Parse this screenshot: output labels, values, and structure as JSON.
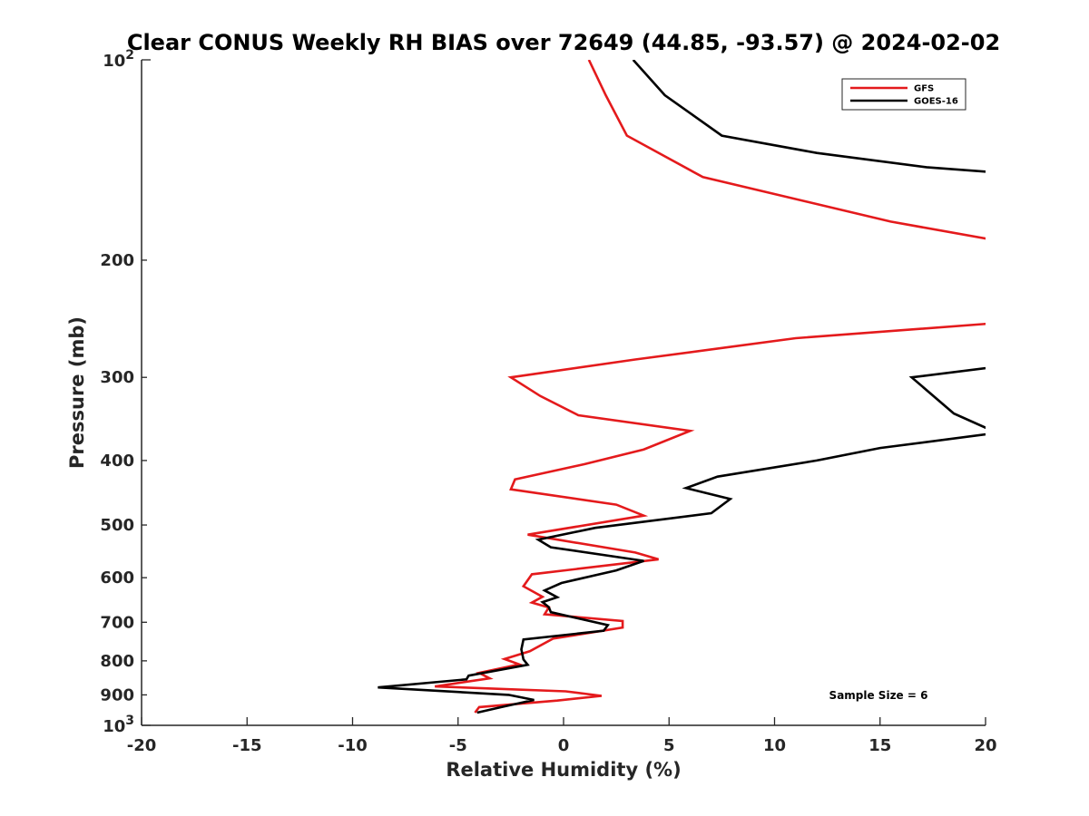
{
  "chart_data": {
    "type": "line",
    "title": "Clear CONUS Weekly RH BIAS over 72649 (44.85, -93.57) @ 2024-02-02",
    "xlabel": "Relative Humidity (%)",
    "ylabel": "Pressure (mb)",
    "xlim": [
      -20,
      20
    ],
    "ylim": [
      100,
      1000
    ],
    "y_scale": "log",
    "y_reversed": true,
    "x_ticks": [
      "-20",
      "-15",
      "-10",
      "-5",
      "0",
      "5",
      "10",
      "15",
      "20"
    ],
    "x_tick_values": [
      -20,
      -15,
      -10,
      -5,
      0,
      5,
      10,
      15,
      20
    ],
    "y_ticks": [
      {
        "value": 200,
        "label": "200"
      },
      {
        "value": 300,
        "label": "300"
      },
      {
        "value": 400,
        "label": "400"
      },
      {
        "value": 500,
        "label": "500"
      },
      {
        "value": 600,
        "label": "600"
      },
      {
        "value": 700,
        "label": "700"
      },
      {
        "value": 800,
        "label": "800"
      },
      {
        "value": 900,
        "label": "900"
      }
    ],
    "y_decade_ticks": [
      {
        "value": 100,
        "base": "10",
        "exp": "2"
      },
      {
        "value": 1000,
        "base": "10",
        "exp": "3"
      }
    ],
    "grid": false,
    "legend_position": "top-right",
    "annotation": "Sample Size = 6",
    "series": [
      {
        "name": "GFS",
        "color": "#e41a1c",
        "points": [
          [
            1.2,
            100
          ],
          [
            2.0,
            113
          ],
          [
            3.0,
            130
          ],
          [
            6.6,
            150
          ],
          [
            15.5,
            175
          ],
          [
            21.0,
            188
          ],
          [
            null,
            220
          ],
          [
            21.0,
            248
          ],
          [
            11.0,
            262
          ],
          [
            3.4,
            282
          ],
          [
            -2.5,
            300
          ],
          [
            -1.1,
            320
          ],
          [
            0.7,
            342
          ],
          [
            6.0,
            361
          ],
          [
            3.8,
            385
          ],
          [
            1.0,
            405
          ],
          [
            -2.3,
            427
          ],
          [
            -2.5,
            442
          ],
          [
            2.5,
            466
          ],
          [
            3.8,
            484
          ],
          [
            -1.7,
            517
          ],
          [
            3.4,
            550
          ],
          [
            4.5,
            563
          ],
          [
            -1.5,
            593
          ],
          [
            -1.9,
            618
          ],
          [
            -1.0,
            641
          ],
          [
            -1.5,
            654
          ],
          [
            -0.7,
            665
          ],
          [
            -0.9,
            681
          ],
          [
            2.8,
            697
          ],
          [
            2.8,
            713
          ],
          [
            -0.5,
            741
          ],
          [
            -1.6,
            774
          ],
          [
            -2.8,
            795
          ],
          [
            -2.1,
            810
          ],
          [
            -4.0,
            834
          ],
          [
            -3.5,
            850
          ],
          [
            -6.1,
            874
          ],
          [
            0.1,
            889
          ],
          [
            1.8,
            903
          ],
          [
            -0.3,
            918
          ],
          [
            -4.0,
            939
          ],
          [
            -4.2,
            957
          ]
        ]
      },
      {
        "name": "GOES-16",
        "color": "#000000",
        "points": [
          [
            3.3,
            100
          ],
          [
            4.8,
            113
          ],
          [
            7.5,
            130
          ],
          [
            12.0,
            138
          ],
          [
            17.2,
            145
          ],
          [
            21.0,
            148
          ],
          [
            null,
            220
          ],
          [
            21.0,
            288
          ],
          [
            16.5,
            300
          ],
          [
            18.5,
            340
          ],
          [
            20.0,
            357
          ],
          [
            21.0,
            362
          ],
          [
            15.0,
            383
          ],
          [
            12.0,
            400
          ],
          [
            7.3,
            423
          ],
          [
            5.8,
            440
          ],
          [
            7.9,
            457
          ],
          [
            7.0,
            480
          ],
          [
            1.5,
            505
          ],
          [
            -1.2,
            526
          ],
          [
            -0.6,
            540
          ],
          [
            3.8,
            566
          ],
          [
            2.5,
            585
          ],
          [
            -0.1,
            611
          ],
          [
            -0.9,
            627
          ],
          [
            -0.3,
            642
          ],
          [
            -1.0,
            653
          ],
          [
            -0.7,
            664
          ],
          [
            -0.6,
            676
          ],
          [
            2.1,
            707
          ],
          [
            1.9,
            721
          ],
          [
            -1.9,
            743
          ],
          [
            -2.0,
            769
          ],
          [
            -1.9,
            796
          ],
          [
            -1.7,
            811
          ],
          [
            -4.5,
            842
          ],
          [
            -4.6,
            853
          ],
          [
            -8.8,
            877
          ],
          [
            -2.6,
            900
          ],
          [
            -1.4,
            916
          ],
          [
            -2.9,
            938
          ],
          [
            -4.1,
            957
          ]
        ]
      }
    ]
  }
}
